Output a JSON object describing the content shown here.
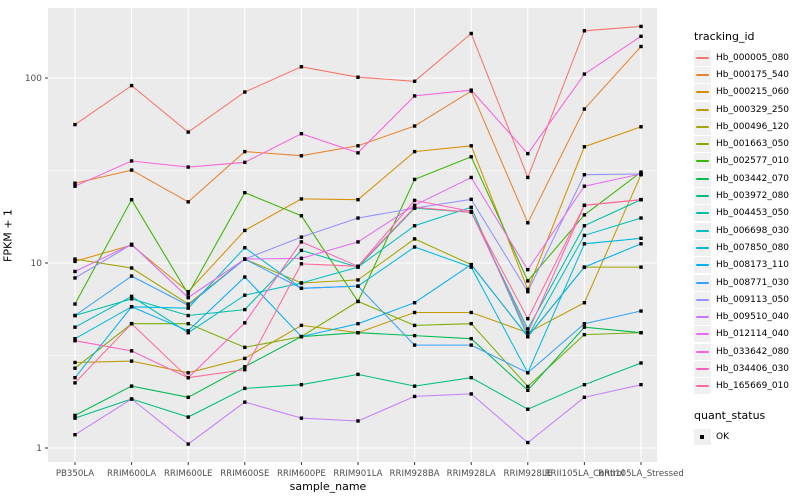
{
  "axes": {
    "x_title": "sample_name",
    "y_title": "FPKM + 1"
  },
  "legend": {
    "tracking_title": "tracking_id",
    "quant_title": "quant_status",
    "quant_items": [
      {
        "label": "OK",
        "marker": "black-square"
      }
    ]
  },
  "colors": {
    "panel_bg": "#EBEBEB",
    "grid": "#FFFFFF",
    "marker": "#000000",
    "tick_label": "#4D4D4D",
    "legend_key_bg": "#F0F0F0"
  },
  "chart_data": {
    "type": "line",
    "title": "",
    "xlabel": "sample_name",
    "ylabel": "FPKM + 1",
    "y_scale": "log10",
    "y_major_ticks": [
      1,
      10,
      100
    ],
    "y_minor_ticks": [
      3.162,
      31.62
    ],
    "ylim": [
      1,
      240
    ],
    "grid": true,
    "legend_position": "right",
    "point_marker": "filled-black-square",
    "categories": [
      "PB350LA",
      "RRIM600LA",
      "RRIM600LE",
      "RRIM600SE",
      "RRIM600PE",
      "RRIM901LA",
      "RRIM928BA",
      "RRIM928LA",
      "RRIM928LE",
      "RRII105LA_Control",
      "RRII105LA_Stressed"
    ],
    "series": [
      {
        "name": "Hb_000005_080",
        "color": "#F8766D",
        "values": [
          56,
          91,
          51,
          84,
          115,
          101,
          96,
          174,
          29,
          180,
          190
        ]
      },
      {
        "name": "Hb_000175_540",
        "color": "#EA8331",
        "values": [
          27,
          31.8,
          21.4,
          40,
          38,
          43,
          55,
          85,
          16.5,
          68,
          148
        ]
      },
      {
        "name": "Hb_000215_060",
        "color": "#D89000",
        "values": [
          10.2,
          12.5,
          7,
          15,
          22.2,
          22,
          40,
          43,
          7.2,
          42.5,
          54.5
        ]
      },
      {
        "name": "Hb_000329_250",
        "color": "#C09B00",
        "values": [
          2.9,
          2.95,
          2.55,
          3.05,
          4.6,
          4.2,
          5.4,
          5.4,
          4.2,
          6.1,
          30
        ]
      },
      {
        "name": "Hb_000496_120",
        "color": "#A3A500",
        "values": [
          10.5,
          9.4,
          6,
          10.5,
          7.8,
          8.1,
          13.5,
          9.8,
          4,
          9.5,
          9.5
        ]
      },
      {
        "name": "Hb_001663_050",
        "color": "#7CAE00",
        "values": [
          2.7,
          4.7,
          4.7,
          3.5,
          4,
          6.2,
          4.6,
          4.7,
          2.15,
          4.1,
          4.2
        ]
      },
      {
        "name": "Hb_002577_010",
        "color": "#39B600",
        "values": [
          6,
          22,
          6.8,
          24,
          18,
          6.2,
          28.3,
          37.5,
          8,
          18.2,
          31
        ]
      },
      {
        "name": "Hb_003442_070",
        "color": "#00BB4E",
        "values": [
          1.5,
          2.16,
          1.88,
          2.75,
          4,
          4.2,
          4.05,
          3.9,
          2.05,
          4.5,
          4.2
        ]
      },
      {
        "name": "Hb_003972_080",
        "color": "#00BF7D",
        "values": [
          1.45,
          1.84,
          1.47,
          2.1,
          2.2,
          2.5,
          2.16,
          2.4,
          1.62,
          2.2,
          2.88
        ]
      },
      {
        "name": "Hb_004453_050",
        "color": "#00C1A3",
        "values": [
          5.2,
          6.4,
          5.2,
          5.6,
          11.7,
          9.5,
          19.8,
          18.8,
          4.4,
          15.9,
          22
        ]
      },
      {
        "name": "Hb_006698_030",
        "color": "#00BFC4",
        "values": [
          4.5,
          6.6,
          4.2,
          6.7,
          7.8,
          9.5,
          15.9,
          20,
          4,
          14.1,
          17.5
        ]
      },
      {
        "name": "Hb_007850_080",
        "color": "#00BAE0",
        "values": [
          3.9,
          5.8,
          5.7,
          12.1,
          7.3,
          7.5,
          12.2,
          9.5,
          2.55,
          12.7,
          13.6
        ]
      },
      {
        "name": "Hb_008173_110",
        "color": "#00B0F6",
        "values": [
          2.4,
          5.8,
          4.3,
          8.4,
          4,
          4.7,
          6.1,
          9.8,
          4,
          9.5,
          12.7
        ]
      },
      {
        "name": "Hb_008771_030",
        "color": "#35A2FF",
        "values": [
          5.2,
          8.5,
          5.9,
          10.5,
          7.3,
          7.5,
          3.6,
          3.6,
          2.55,
          4.7,
          5.5
        ]
      },
      {
        "name": "Hb_009113_050",
        "color": "#9590FF",
        "values": [
          8.3,
          12.6,
          6.5,
          10.5,
          13.8,
          17.5,
          19.8,
          22.1,
          7,
          30,
          30.3
        ]
      },
      {
        "name": "Hb_009510_040",
        "color": "#C77CFF",
        "values": [
          1.18,
          1.84,
          1.05,
          1.77,
          1.45,
          1.4,
          1.9,
          1.96,
          1.07,
          1.88,
          2.2
        ]
      },
      {
        "name": "Hb_012114_040",
        "color": "#E76BF3",
        "values": [
          9,
          12.6,
          6.5,
          10.5,
          10.6,
          13,
          20.5,
          29,
          9.2,
          26,
          30.3
        ]
      },
      {
        "name": "Hb_033642_080",
        "color": "#FA62DB",
        "values": [
          26,
          35.6,
          33,
          35,
          50,
          39.4,
          80,
          86,
          39,
          105,
          168
        ]
      },
      {
        "name": "Hb_034406_030",
        "color": "#FF62BC",
        "values": [
          3.8,
          3.35,
          2.4,
          4.75,
          13,
          9.6,
          21.8,
          19,
          4.2,
          20.5,
          22
        ]
      },
      {
        "name": "Hb_165669_010",
        "color": "#FF6A98",
        "values": [
          2.25,
          4.7,
          2.4,
          2.65,
          9.9,
          9.6,
          20,
          18.8,
          5,
          20.5,
          22
        ]
      }
    ]
  }
}
